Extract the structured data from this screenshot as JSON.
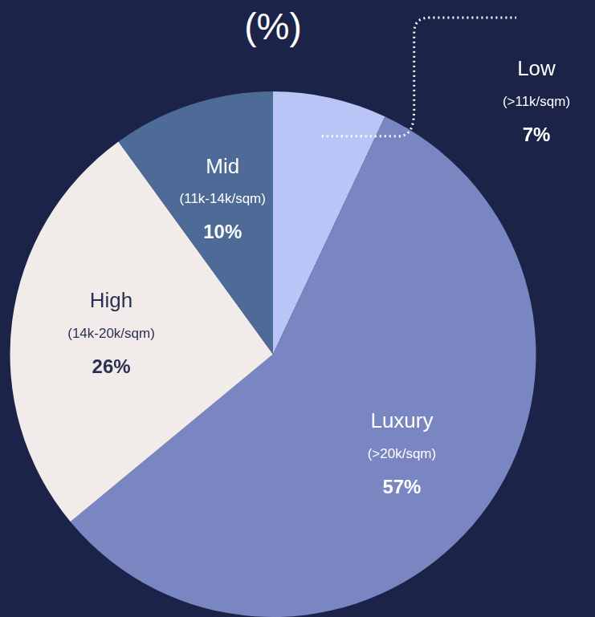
{
  "chart_data": {
    "type": "pie",
    "title": "(%)",
    "categories": [
      "Low",
      "Luxury",
      "High",
      "Mid"
    ],
    "ranges": [
      "(>11k/sqm)",
      "(>20k/sqm)",
      "(14k-20k/sqm)",
      "(11k-14k/sqm)"
    ],
    "values": [
      7,
      57,
      26,
      10
    ],
    "value_labels": [
      "7%",
      "57%",
      "26%",
      "10%"
    ],
    "colors": [
      "#b9c4f7",
      "#7a86c2",
      "#f1ece9",
      "#4e6b98"
    ],
    "data_labels": true
  }
}
